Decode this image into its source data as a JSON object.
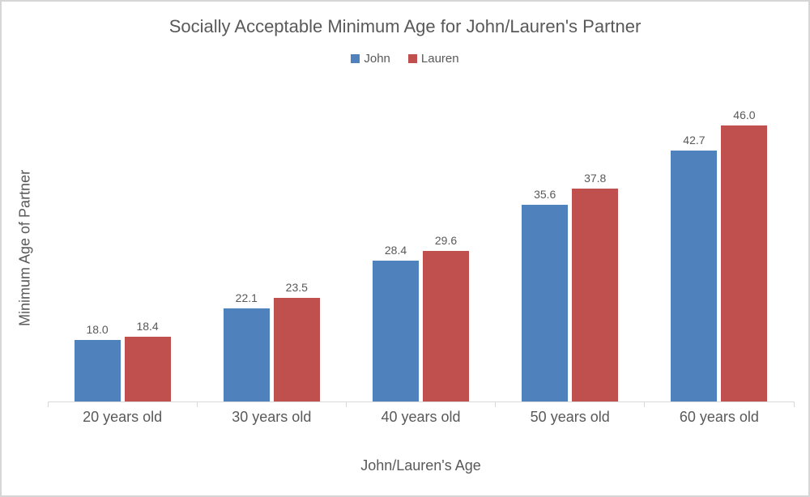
{
  "chart_data": {
    "type": "bar",
    "title": "Socially Acceptable Minimum Age for John/Lauren's Partner",
    "xlabel": "John/Lauren's Age",
    "ylabel": "Minimum Age of Partner",
    "categories": [
      "20 years old",
      "30 years old",
      "40 years old",
      "50 years old",
      "60 years old"
    ],
    "series": [
      {
        "name": "John",
        "color": "#4F81BD",
        "values": [
          18.0,
          22.1,
          28.4,
          35.6,
          42.7
        ]
      },
      {
        "name": "Lauren",
        "color": "#C0504D",
        "values": [
          18.4,
          23.5,
          29.6,
          37.8,
          46.0
        ]
      }
    ],
    "value_labels": [
      "18.0",
      "22.1",
      "28.4",
      "35.6",
      "42.7",
      "18.4",
      "23.5",
      "29.6",
      "37.8",
      "46.0"
    ],
    "ylim": [
      10,
      50
    ],
    "grid": false,
    "legend_position": "top",
    "colors": {
      "text": "#595959",
      "axis_line": "#d9d9d9",
      "frame_border": "#d6d6d6",
      "background": "#ffffff"
    }
  }
}
